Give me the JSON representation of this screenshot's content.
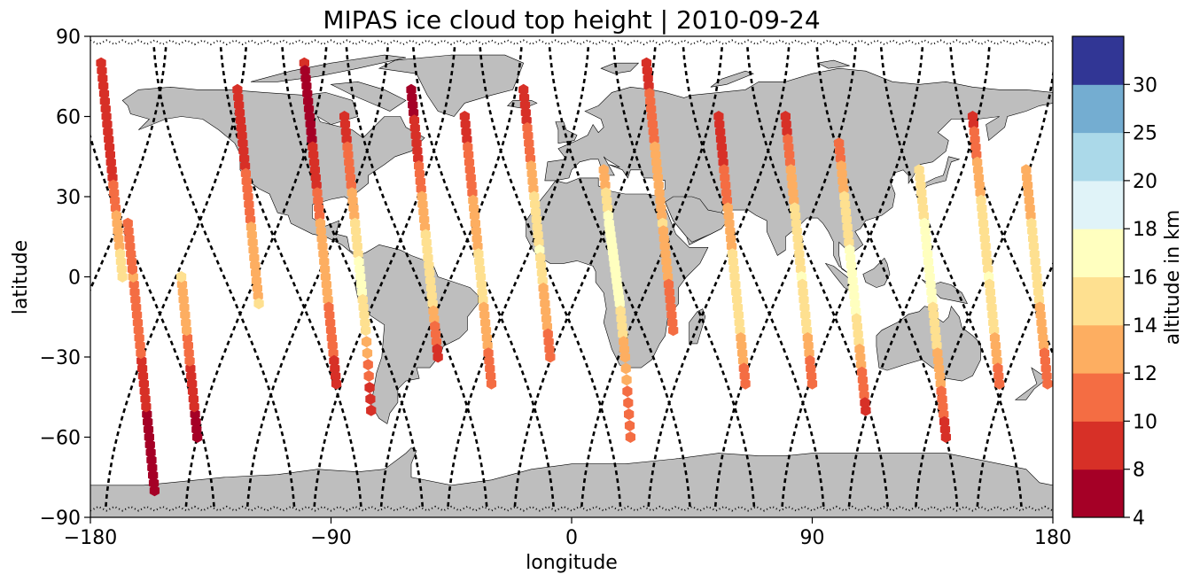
{
  "title": "MIPAS ice cloud top height | 2010-09-24",
  "axes": {
    "xlabel": "longitude",
    "ylabel": "latitude",
    "xlim": [
      -180,
      180
    ],
    "ylim": [
      -90,
      90
    ],
    "xticks": [
      -180,
      -90,
      0,
      90,
      180
    ],
    "yticks": [
      -90,
      -60,
      -30,
      0,
      30,
      60,
      90
    ],
    "xtick_labels": [
      "−180",
      "−90",
      "0",
      "90",
      "180"
    ],
    "ytick_labels": [
      "−90",
      "−60",
      "−30",
      "0",
      "30",
      "60",
      "90"
    ]
  },
  "colorbar": {
    "label": "altitude in km",
    "bounds": [
      4,
      8,
      10,
      12,
      14,
      16,
      18,
      20,
      25,
      30
    ],
    "tick_labels": [
      "4",
      "8",
      "10",
      "12",
      "14",
      "16",
      "18",
      "20",
      "25",
      "30"
    ],
    "colors": [
      "#a50026",
      "#d73027",
      "#f46d43",
      "#fdae61",
      "#fee090",
      "#ffffbf",
      "#e0f3f8",
      "#abd9e9",
      "#74add1",
      "#313695"
    ]
  },
  "map_colors": {
    "land": "#bebebe",
    "coast": "#000000",
    "track": "#000000"
  },
  "chart_data": {
    "type": "scatter",
    "title": "MIPAS ice cloud top height | 2010-09-24",
    "xlabel": "longitude",
    "ylabel": "latitude",
    "xlim": [
      -180,
      180
    ],
    "ylim": [
      -90,
      90
    ],
    "grid": false,
    "colorbar_label": "altitude in km",
    "orbits_ascending_lon_at_equator": [
      -178,
      -148,
      -118,
      -95,
      -70,
      -45,
      -20,
      5,
      30,
      55,
      80,
      105,
      130,
      155,
      178
    ],
    "orbits_descending_lon_at_equator": [
      -160,
      -130,
      -105,
      -82,
      -58,
      -33,
      -8,
      18,
      42,
      68,
      92,
      118,
      142,
      168
    ],
    "series": [
      {
        "lon": [
          -176,
          -174,
          -172,
          -170,
          -168
        ],
        "lat": [
          80,
          60,
          40,
          20,
          0
        ],
        "alt_km": [
          8,
          8,
          9,
          13,
          15
        ]
      },
      {
        "lon": [
          -156,
          -158,
          -160,
          -162,
          -164,
          -166
        ],
        "lat": [
          -80,
          -60,
          -40,
          -20,
          0,
          20
        ],
        "alt_km": [
          6,
          7,
          9,
          11,
          12,
          10
        ]
      },
      {
        "lon": [
          -140,
          -142,
          -144,
          -146
        ],
        "lat": [
          -60,
          -40,
          -20,
          0
        ],
        "alt_km": [
          7,
          9,
          12,
          14
        ]
      },
      {
        "lon": [
          -125,
          -123,
          -121,
          -119,
          -117
        ],
        "lat": [
          70,
          50,
          30,
          10,
          -10
        ],
        "alt_km": [
          8,
          9,
          11,
          13,
          14
        ]
      },
      {
        "lon": [
          -100,
          -98,
          -96,
          -94,
          -92,
          -90,
          -88
        ],
        "lat": [
          80,
          60,
          40,
          20,
          0,
          -20,
          -40
        ],
        "alt_km": [
          8,
          7,
          9,
          12,
          13,
          11,
          9
        ]
      },
      {
        "lon": [
          -85,
          -83,
          -81,
          -79,
          -77,
          -75
        ],
        "lat": [
          60,
          40,
          20,
          0,
          -20,
          -50
        ],
        "alt_km": [
          9,
          11,
          14,
          17,
          14,
          8
        ]
      },
      {
        "lon": [
          -60,
          -58,
          -56,
          -54,
          -52,
          -50
        ],
        "lat": [
          70,
          50,
          30,
          10,
          -10,
          -30
        ],
        "alt_km": [
          7,
          9,
          12,
          15,
          14,
          9
        ]
      },
      {
        "lon": [
          -40,
          -38,
          -36,
          -34,
          -32,
          -30
        ],
        "lat": [
          60,
          40,
          20,
          0,
          -20,
          -40
        ],
        "alt_km": [
          9,
          11,
          13,
          15,
          13,
          10
        ]
      },
      {
        "lon": [
          -18,
          -16,
          -14,
          -12,
          -10,
          -8
        ],
        "lat": [
          70,
          50,
          30,
          10,
          -10,
          -30
        ],
        "alt_km": [
          8,
          11,
          14,
          16,
          13,
          11
        ]
      },
      {
        "lon": [
          12,
          14,
          16,
          18,
          20,
          22
        ],
        "lat": [
          40,
          20,
          5,
          -10,
          -30,
          -60
        ],
        "alt_km": [
          12,
          17,
          17,
          16,
          13,
          10
        ]
      },
      {
        "lon": [
          28,
          30,
          32,
          34,
          36,
          38
        ],
        "lat": [
          80,
          60,
          40,
          20,
          0,
          -20
        ],
        "alt_km": [
          9,
          11,
          13,
          14,
          12,
          10
        ]
      },
      {
        "lon": [
          55,
          57,
          59,
          61,
          63,
          65
        ],
        "lat": [
          60,
          40,
          20,
          0,
          -20,
          -40
        ],
        "alt_km": [
          8,
          10,
          13,
          15,
          14,
          11
        ]
      },
      {
        "lon": [
          80,
          82,
          84,
          86,
          88,
          90
        ],
        "lat": [
          60,
          40,
          20,
          0,
          -20,
          -40
        ],
        "alt_km": [
          9,
          12,
          15,
          16,
          14,
          10
        ]
      },
      {
        "lon": [
          100,
          102,
          104,
          106,
          108,
          110
        ],
        "lat": [
          50,
          30,
          10,
          -10,
          -30,
          -50
        ],
        "alt_km": [
          11,
          14,
          16,
          17,
          13,
          9
        ]
      },
      {
        "lon": [
          130,
          132,
          134,
          136,
          138,
          140
        ],
        "lat": [
          40,
          20,
          0,
          -20,
          -40,
          -60
        ],
        "alt_km": [
          14,
          16,
          17,
          15,
          12,
          9
        ]
      },
      {
        "lon": [
          150,
          152,
          154,
          156,
          158,
          160
        ],
        "lat": [
          60,
          40,
          20,
          0,
          -20,
          -40
        ],
        "alt_km": [
          9,
          13,
          15,
          16,
          14,
          11
        ]
      },
      {
        "lon": [
          170,
          172,
          174,
          176,
          178
        ],
        "lat": [
          40,
          20,
          0,
          -20,
          -40
        ],
        "alt_km": [
          12,
          14,
          15,
          13,
          10
        ]
      }
    ]
  }
}
